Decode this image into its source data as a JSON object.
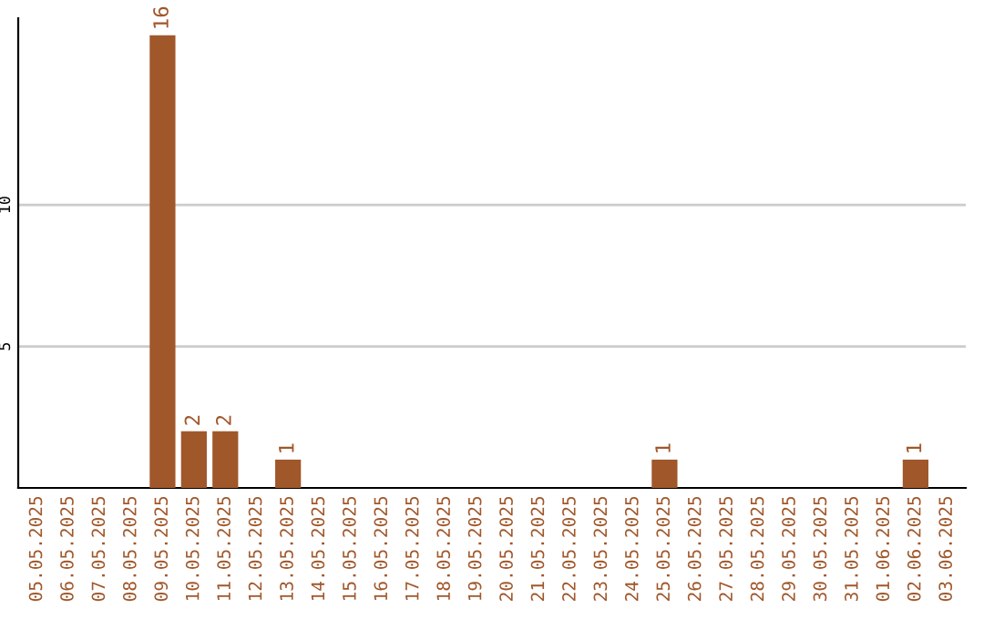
{
  "chart_data": {
    "type": "bar",
    "categories": [
      "05.05.2025",
      "06.05.2025",
      "07.05.2025",
      "08.05.2025",
      "09.05.2025",
      "10.05.2025",
      "11.05.2025",
      "12.05.2025",
      "13.05.2025",
      "14.05.2025",
      "15.05.2025",
      "16.05.2025",
      "17.05.2025",
      "18.05.2025",
      "19.05.2025",
      "20.05.2025",
      "21.05.2025",
      "22.05.2025",
      "23.05.2025",
      "24.05.2025",
      "25.05.2025",
      "26.05.2025",
      "27.05.2025",
      "28.05.2025",
      "29.05.2025",
      "30.05.2025",
      "31.05.2025",
      "01.06.2025",
      "02.06.2025",
      "03.06.2025"
    ],
    "values": [
      0,
      0,
      0,
      0,
      16,
      2,
      2,
      0,
      1,
      0,
      0,
      0,
      0,
      0,
      0,
      0,
      0,
      0,
      0,
      0,
      1,
      0,
      0,
      0,
      0,
      0,
      0,
      0,
      1,
      0
    ],
    "value_labels": [
      null,
      null,
      null,
      null,
      "16",
      "2",
      "2",
      null,
      "1",
      null,
      null,
      null,
      null,
      null,
      null,
      null,
      null,
      null,
      null,
      null,
      "1",
      null,
      null,
      null,
      null,
      null,
      null,
      null,
      "1",
      null
    ],
    "color": "#a0572a",
    "ylim": [
      0,
      16.6
    ],
    "yticks": [
      5,
      10
    ],
    "grid": "y"
  }
}
